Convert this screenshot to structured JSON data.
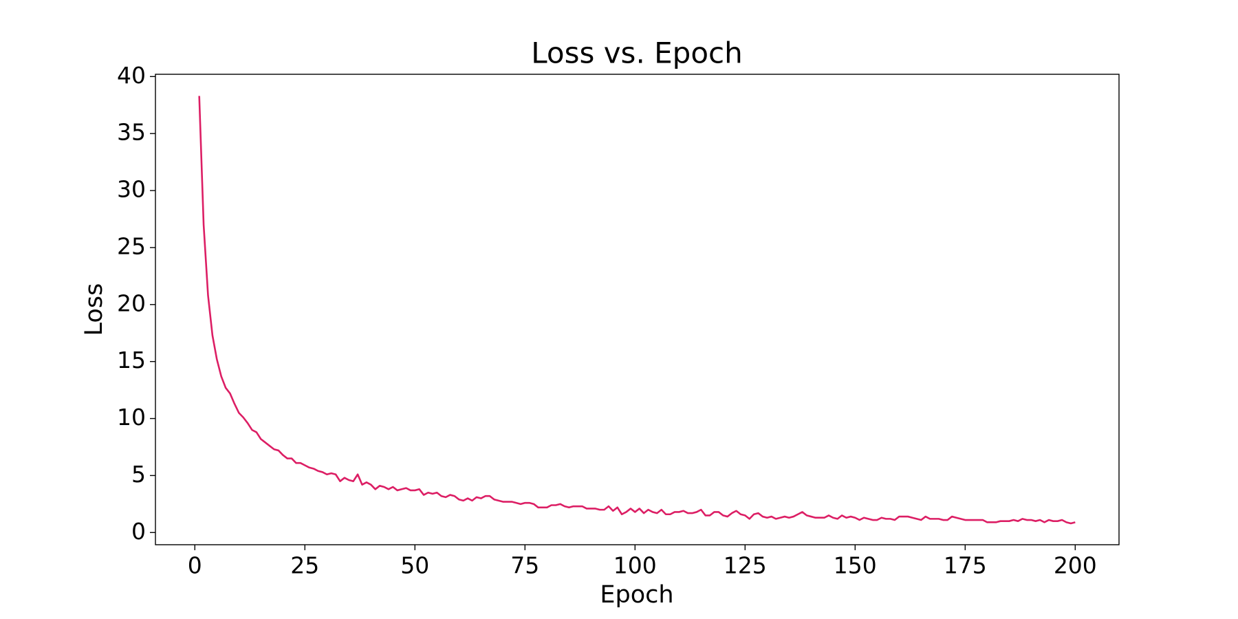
{
  "chart_data": {
    "type": "line",
    "title": "Loss vs. Epoch",
    "x_label": "Epoch",
    "y_label": "Loss",
    "x": [
      1,
      2,
      3,
      4,
      5,
      6,
      7,
      8,
      9,
      10,
      11,
      12,
      13,
      14,
      15,
      16,
      17,
      18,
      19,
      20,
      21,
      22,
      23,
      24,
      25,
      26,
      27,
      28,
      29,
      30,
      31,
      32,
      33,
      34,
      35,
      36,
      37,
      38,
      39,
      40,
      41,
      42,
      43,
      44,
      45,
      46,
      47,
      48,
      49,
      50,
      51,
      52,
      53,
      54,
      55,
      56,
      57,
      58,
      59,
      60,
      61,
      62,
      63,
      64,
      65,
      66,
      67,
      68,
      69,
      70,
      71,
      72,
      73,
      74,
      75,
      76,
      77,
      78,
      79,
      80,
      81,
      82,
      83,
      84,
      85,
      86,
      87,
      88,
      89,
      90,
      91,
      92,
      93,
      94,
      95,
      96,
      97,
      98,
      99,
      100,
      101,
      102,
      103,
      104,
      105,
      106,
      107,
      108,
      109,
      110,
      111,
      112,
      113,
      114,
      115,
      116,
      117,
      118,
      119,
      120,
      121,
      122,
      123,
      124,
      125,
      126,
      127,
      128,
      129,
      130,
      131,
      132,
      133,
      134,
      135,
      136,
      137,
      138,
      139,
      140,
      141,
      142,
      143,
      144,
      145,
      146,
      147,
      148,
      149,
      150,
      151,
      152,
      153,
      154,
      155,
      156,
      157,
      158,
      159,
      160,
      161,
      162,
      163,
      164,
      165,
      166,
      167,
      168,
      169,
      170,
      171,
      172,
      173,
      174,
      175,
      176,
      177,
      178,
      179,
      180,
      181,
      182,
      183,
      184,
      185,
      186,
      187,
      188,
      189,
      190,
      191,
      192,
      193,
      194,
      195,
      196,
      197,
      198,
      199,
      200
    ],
    "series": [
      {
        "name": "Loss",
        "color": "#dc1e64",
        "values": [
          38.3,
          27,
          20.8,
          17.3,
          15.2,
          13.7,
          12.7,
          12.2,
          11.3,
          10.5,
          10.1,
          9.6,
          9.0,
          8.8,
          8.2,
          7.9,
          7.6,
          7.3,
          7.2,
          6.8,
          6.5,
          6.5,
          6.1,
          6.1,
          5.9,
          5.7,
          5.6,
          5.4,
          5.3,
          5.1,
          5.2,
          5.1,
          4.5,
          4.8,
          4.6,
          4.5,
          5.1,
          4.2,
          4.4,
          4.2,
          3.8,
          4.1,
          4.0,
          3.8,
          4.0,
          3.7,
          3.8,
          3.9,
          3.7,
          3.7,
          3.8,
          3.3,
          3.5,
          3.4,
          3.5,
          3.2,
          3.1,
          3.3,
          3.2,
          2.9,
          2.8,
          3.0,
          2.8,
          3.1,
          3.0,
          3.2,
          3.2,
          2.9,
          2.8,
          2.7,
          2.7,
          2.7,
          2.6,
          2.5,
          2.6,
          2.6,
          2.5,
          2.2,
          2.2,
          2.2,
          2.4,
          2.4,
          2.5,
          2.3,
          2.2,
          2.3,
          2.3,
          2.3,
          2.1,
          2.1,
          2.1,
          2.0,
          2.0,
          2.3,
          1.9,
          2.2,
          1.6,
          1.8,
          2.1,
          1.8,
          2.1,
          1.7,
          2.0,
          1.8,
          1.7,
          2.0,
          1.6,
          1.6,
          1.8,
          1.8,
          1.9,
          1.7,
          1.7,
          1.8,
          2.0,
          1.5,
          1.5,
          1.8,
          1.8,
          1.5,
          1.4,
          1.7,
          1.9,
          1.6,
          1.5,
          1.2,
          1.6,
          1.7,
          1.4,
          1.3,
          1.4,
          1.2,
          1.3,
          1.4,
          1.3,
          1.4,
          1.6,
          1.8,
          1.5,
          1.4,
          1.3,
          1.3,
          1.3,
          1.5,
          1.3,
          1.2,
          1.5,
          1.3,
          1.4,
          1.3,
          1.1,
          1.3,
          1.2,
          1.1,
          1.1,
          1.3,
          1.2,
          1.2,
          1.1,
          1.4,
          1.4,
          1.4,
          1.3,
          1.2,
          1.1,
          1.4,
          1.2,
          1.2,
          1.2,
          1.1,
          1.1,
          1.4,
          1.3,
          1.2,
          1.1,
          1.1,
          1.1,
          1.1,
          1.1,
          0.9,
          0.9,
          0.9,
          1.0,
          1.0,
          1.0,
          1.1,
          1.0,
          1.2,
          1.1,
          1.1,
          1.0,
          1.1,
          0.9,
          1.1,
          1.0,
          1.0,
          1.1,
          0.9,
          0.8,
          0.9
        ]
      }
    ],
    "xlim": [
      -8.95,
      209.95
    ],
    "ylim": [
      -1.07,
      40.2
    ],
    "xticks": [
      0,
      25,
      50,
      75,
      100,
      125,
      150,
      175,
      200
    ],
    "yticks": [
      0,
      5,
      10,
      15,
      20,
      25,
      30,
      35,
      40
    ],
    "grid": false
  }
}
